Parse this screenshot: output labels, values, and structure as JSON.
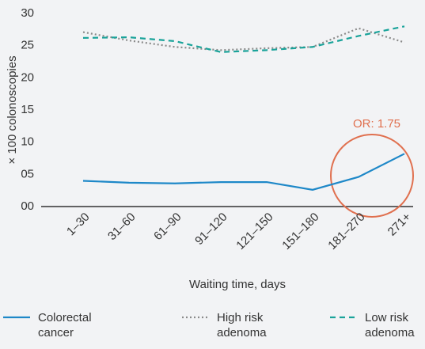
{
  "chart_data": {
    "type": "line",
    "x_label": "Waiting time, days",
    "y_label": "× 100 colonoscopies",
    "categories": [
      "1–30",
      "31–60",
      "61–90",
      "91–120",
      "121–150",
      "151–180",
      "181–270",
      "271+"
    ],
    "series": [
      {
        "name": "Colorectal cancer",
        "color": "#1e88c8",
        "dash": "solid",
        "values": [
          4.0,
          3.7,
          3.6,
          3.8,
          3.8,
          2.6,
          4.6,
          8.2
        ]
      },
      {
        "name": "High risk adenoma",
        "color": "#8a8a8a",
        "dash": "dotted",
        "values": [
          27.1,
          25.8,
          24.8,
          24.3,
          24.6,
          24.8,
          27.7,
          25.5
        ]
      },
      {
        "name": "Low risk adenoma",
        "color": "#1aa39a",
        "dash": "dashed",
        "values": [
          26.2,
          26.3,
          25.7,
          24.0,
          24.3,
          24.8,
          26.5,
          28.0
        ]
      }
    ],
    "ylim": [
      0,
      30
    ],
    "yticks": [
      {
        "value": 0,
        "label": "00"
      },
      {
        "value": 5,
        "label": "05"
      },
      10,
      15,
      20,
      25,
      30
    ],
    "grid": false,
    "legend": "bottom",
    "annotation": "OR: 1.75",
    "annotation_color": "#e0704f"
  }
}
